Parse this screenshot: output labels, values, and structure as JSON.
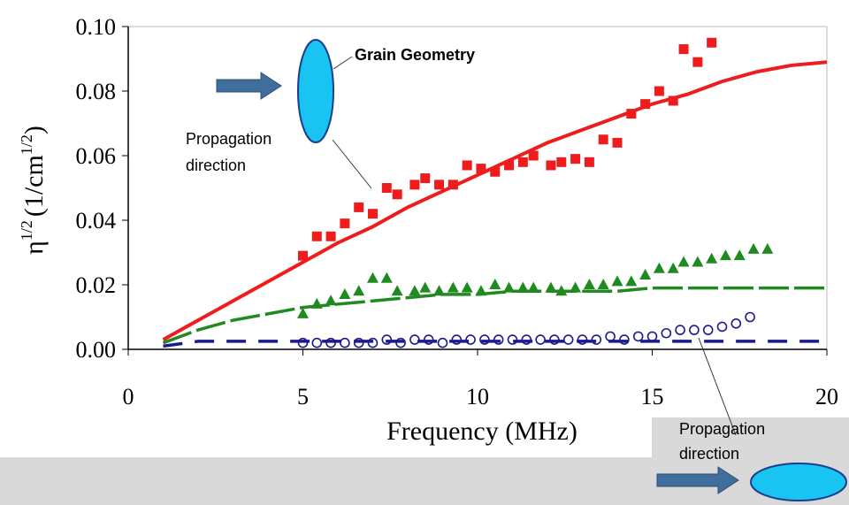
{
  "chart_data": {
    "type": "scatter",
    "x_label": "Frequency (MHz)",
    "y_label": [
      "η",
      "1/2",
      "(1/cm",
      "1/2",
      ")"
    ],
    "xlim": [
      0,
      20
    ],
    "xticks": [
      0,
      5,
      10,
      15,
      20
    ],
    "ylim": [
      0,
      0.1
    ],
    "yticks": [
      {
        "value": 0,
        "label": "0.00"
      },
      {
        "value": 0.02,
        "label": "0.02"
      },
      {
        "value": 0.04,
        "label": "0.04"
      },
      {
        "value": 0.06,
        "label": "0.06"
      },
      {
        "value": 0.08,
        "label": "0.08"
      },
      {
        "value": 0.1,
        "label": "0.10"
      }
    ],
    "series": [
      {
        "color": "#ee1c1c",
        "marker": "square",
        "x": [
          5.0,
          5.4,
          5.8,
          6.2,
          6.6,
          7.0,
          7.4,
          7.7,
          8.2,
          8.5,
          8.9,
          9.3,
          9.7,
          10.1,
          10.5,
          10.9,
          11.3,
          11.6,
          12.1,
          12.4,
          12.8,
          13.2,
          13.6,
          14.0,
          14.4,
          14.8,
          15.2,
          15.6,
          15.9,
          16.3,
          16.7
        ],
        "values": [
          0.029,
          0.035,
          0.035,
          0.039,
          0.044,
          0.042,
          0.05,
          0.048,
          0.051,
          0.053,
          0.051,
          0.051,
          0.057,
          0.056,
          0.055,
          0.057,
          0.058,
          0.06,
          0.057,
          0.058,
          0.059,
          0.058,
          0.065,
          0.064,
          0.073,
          0.076,
          0.08,
          0.077,
          0.093,
          0.089,
          0.095
        ]
      },
      {
        "color": "#1f8a1f",
        "marker": "triangle",
        "x": [
          5.0,
          5.4,
          5.8,
          6.2,
          6.6,
          7.0,
          7.4,
          7.7,
          8.2,
          8.5,
          8.9,
          9.3,
          9.7,
          10.1,
          10.5,
          10.9,
          11.3,
          11.6,
          12.1,
          12.4,
          12.8,
          13.2,
          13.6,
          14.0,
          14.4,
          14.8,
          15.2,
          15.6,
          15.9,
          16.3,
          16.7,
          17.1,
          17.5,
          17.9,
          18.3
        ],
        "values": [
          0.011,
          0.014,
          0.015,
          0.017,
          0.018,
          0.022,
          0.022,
          0.018,
          0.018,
          0.019,
          0.018,
          0.019,
          0.019,
          0.018,
          0.02,
          0.019,
          0.019,
          0.019,
          0.019,
          0.018,
          0.019,
          0.02,
          0.02,
          0.021,
          0.021,
          0.023,
          0.025,
          0.025,
          0.027,
          0.027,
          0.028,
          0.029,
          0.029,
          0.031,
          0.031
        ]
      },
      {
        "color": "#1a1a8c",
        "marker": "circle",
        "x": [
          5.0,
          5.4,
          5.8,
          6.2,
          6.6,
          7.0,
          7.4,
          7.8,
          8.2,
          8.6,
          9.0,
          9.4,
          9.8,
          10.2,
          10.6,
          11.0,
          11.4,
          11.8,
          12.2,
          12.6,
          13.0,
          13.4,
          13.8,
          14.2,
          14.6,
          15.0,
          15.4,
          15.8,
          16.2,
          16.6,
          17.0,
          17.4,
          17.8
        ],
        "values": [
          0.002,
          0.002,
          0.002,
          0.002,
          0.002,
          0.002,
          0.003,
          0.002,
          0.003,
          0.003,
          0.002,
          0.003,
          0.003,
          0.003,
          0.003,
          0.003,
          0.003,
          0.003,
          0.003,
          0.003,
          0.003,
          0.003,
          0.004,
          0.003,
          0.004,
          0.004,
          0.005,
          0.006,
          0.006,
          0.006,
          0.007,
          0.008,
          0.01
        ]
      },
      {
        "color": "#ee1c1c",
        "line_style": "solid",
        "x": [
          1,
          2,
          3,
          4,
          5,
          6,
          7,
          8,
          9,
          10,
          11,
          12,
          13,
          14,
          15,
          16,
          17,
          18,
          19,
          20
        ],
        "values": [
          0.003,
          0.009,
          0.015,
          0.021,
          0.027,
          0.033,
          0.038,
          0.044,
          0.049,
          0.054,
          0.059,
          0.064,
          0.068,
          0.072,
          0.076,
          0.079,
          0.083,
          0.086,
          0.088,
          0.089
        ]
      },
      {
        "color": "#1f8a1f",
        "line_style": "long-dash",
        "x": [
          1,
          2,
          3,
          4,
          5,
          6,
          7,
          8,
          9,
          10,
          11,
          12,
          13,
          14,
          15,
          16,
          17,
          18,
          19,
          20
        ],
        "values": [
          0.002,
          0.006,
          0.009,
          0.011,
          0.013,
          0.014,
          0.015,
          0.016,
          0.017,
          0.017,
          0.018,
          0.018,
          0.018,
          0.018,
          0.019,
          0.019,
          0.019,
          0.019,
          0.019,
          0.019
        ]
      },
      {
        "color": "#1a1a8c",
        "line_style": "dashed",
        "x": [
          1,
          2,
          20
        ],
        "values": [
          0.001,
          0.0025,
          0.0025
        ]
      }
    ],
    "annotations": [
      {
        "lines": [
          "Grain Geometry"
        ]
      },
      {
        "lines": [
          "Propagation",
          "direction"
        ]
      },
      {
        "lines": [
          "Propagation",
          "direction"
        ]
      }
    ]
  }
}
